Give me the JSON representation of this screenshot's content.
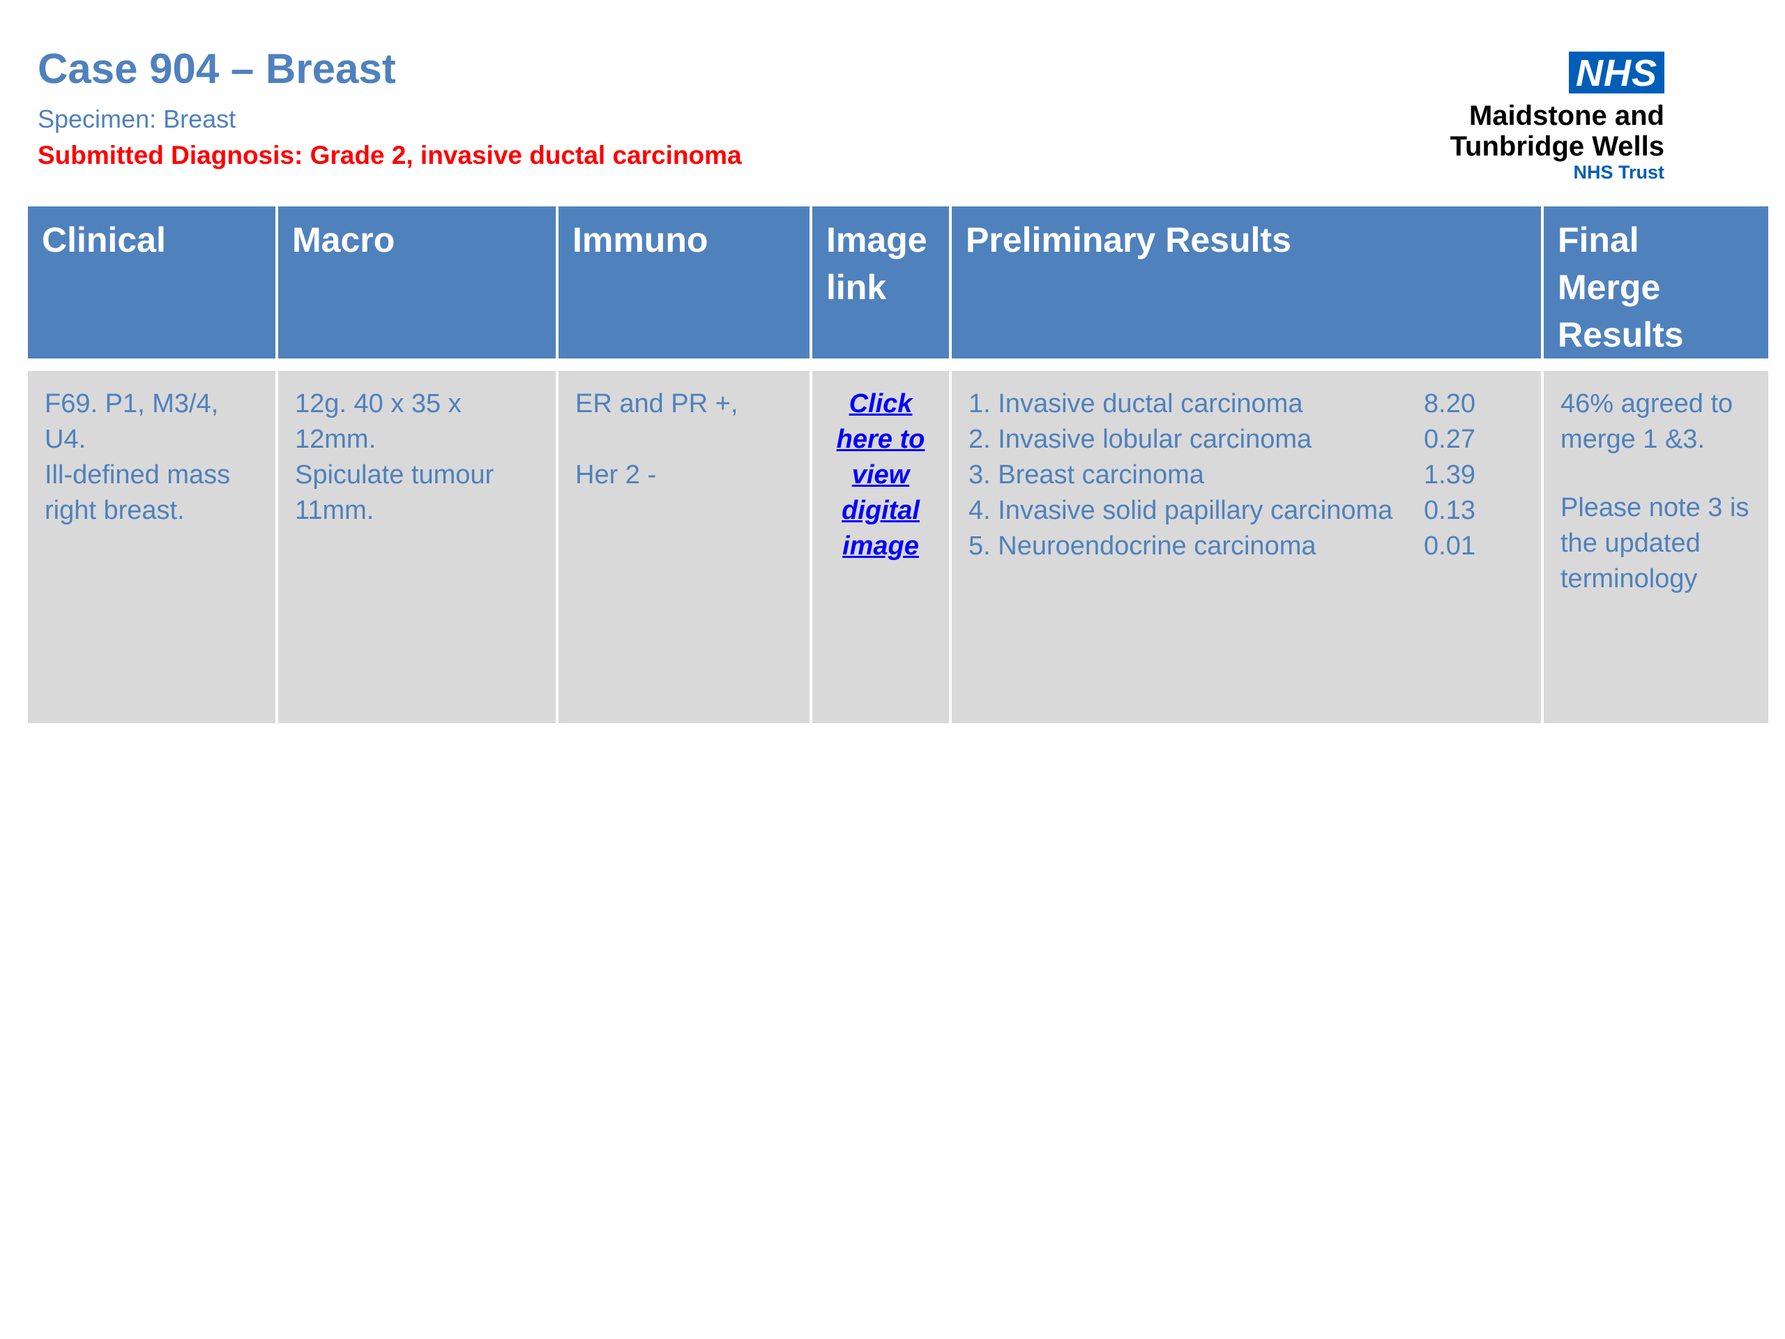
{
  "header": {
    "title": "Case 904 – Breast",
    "specimen": "Specimen: Breast",
    "submitted_diagnosis": "Submitted Diagnosis: Grade 2, invasive ductal carcinoma"
  },
  "logo": {
    "badge": "NHS",
    "line1": "Maidstone and",
    "line2": "Tunbridge Wells",
    "line3": "NHS Trust",
    "badge_color": "#005EB8"
  },
  "table": {
    "headers": {
      "clinical": [
        "Clinical"
      ],
      "macro": [
        "Macro"
      ],
      "immuno": [
        "Immuno"
      ],
      "image_link": [
        "Image",
        "link"
      ],
      "preliminary": [
        "Preliminary Results"
      ],
      "final": [
        "Final",
        "Merge",
        "Results"
      ]
    },
    "row": {
      "clinical": [
        "F69. P1, M3/4,",
        "U4.",
        "Ill-defined mass",
        "right breast."
      ],
      "macro": [
        "12g. 40 x 35 x",
        "12mm.",
        "Spiculate tumour",
        "11mm."
      ],
      "immuno": [
        "ER and PR +,",
        "Her 2 -"
      ],
      "image_link": [
        "Click",
        "here to",
        "view",
        "digital",
        "image"
      ],
      "preliminary": [
        {
          "label": "1. Invasive ductal carcinoma",
          "score": "8.20"
        },
        {
          "label": "2. Invasive lobular carcinoma",
          "score": "0.27"
        },
        {
          "label": "3. Breast carcinoma",
          "score": "1.39"
        },
        {
          "label": "4. Invasive solid papillary carcinoma",
          "score": "0.13"
        },
        {
          "label": "5. Neuroendocrine carcinoma",
          "score": "0.01"
        }
      ],
      "final": [
        "46% agreed to",
        "merge 1 &3.",
        "Please note 3 is",
        "the updated",
        "terminology"
      ]
    }
  },
  "colors": {
    "header_blue": "#4F81BD",
    "cell_grey": "#D9D9D9",
    "alert_red": "#FF0000",
    "link_blue": "#0000FF"
  }
}
